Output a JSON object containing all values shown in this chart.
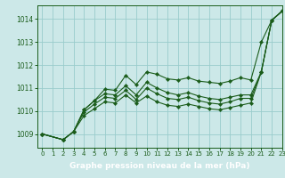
{
  "title": "Graphe pression niveau de la mer (hPa)",
  "bg_color": "#cce8e8",
  "plot_bg_color": "#cce8e8",
  "grid_color": "#99cccc",
  "line_color": "#1a5c1a",
  "xlabel_bg": "#2d6e2d",
  "xlabel_fg": "#ffffff",
  "xlim": [
    -0.5,
    23
  ],
  "ylim": [
    1008.4,
    1014.6
  ],
  "yticks": [
    1009,
    1010,
    1011,
    1012,
    1013,
    1014
  ],
  "xticks": [
    0,
    1,
    2,
    3,
    4,
    5,
    6,
    7,
    8,
    9,
    10,
    11,
    12,
    13,
    14,
    15,
    16,
    17,
    18,
    19,
    20,
    21,
    22,
    23
  ],
  "series": [
    [
      1009.0,
      null,
      1008.75,
      1009.1,
      1010.05,
      1010.45,
      1010.95,
      1010.9,
      1011.55,
      1011.15,
      1011.7,
      1011.6,
      1011.4,
      1011.35,
      1011.45,
      1011.3,
      1011.25,
      1011.2,
      1011.3,
      1011.45,
      1011.35,
      1013.0,
      1013.95,
      1014.35
    ],
    [
      1009.0,
      null,
      1008.75,
      1009.1,
      1010.05,
      1010.45,
      1010.75,
      1010.7,
      1011.1,
      1010.7,
      1011.25,
      1011.0,
      1010.8,
      1010.7,
      1010.8,
      1010.65,
      1010.55,
      1010.5,
      1010.6,
      1010.7,
      1010.7,
      1011.7,
      1013.95,
      1014.35
    ],
    [
      1009.0,
      null,
      1008.75,
      1009.1,
      1009.95,
      1010.3,
      1010.6,
      1010.55,
      1010.9,
      1010.5,
      1011.0,
      1010.75,
      1010.55,
      1010.5,
      1010.6,
      1010.45,
      1010.35,
      1010.3,
      1010.4,
      1010.55,
      1010.55,
      1011.7,
      1013.95,
      1014.35
    ],
    [
      1009.0,
      null,
      1008.75,
      1009.1,
      1009.8,
      1010.1,
      1010.4,
      1010.35,
      1010.7,
      1010.35,
      1010.65,
      1010.4,
      1010.25,
      1010.2,
      1010.3,
      1010.2,
      1010.1,
      1010.05,
      1010.15,
      1010.25,
      1010.35,
      1011.7,
      1013.95,
      1014.35
    ]
  ]
}
